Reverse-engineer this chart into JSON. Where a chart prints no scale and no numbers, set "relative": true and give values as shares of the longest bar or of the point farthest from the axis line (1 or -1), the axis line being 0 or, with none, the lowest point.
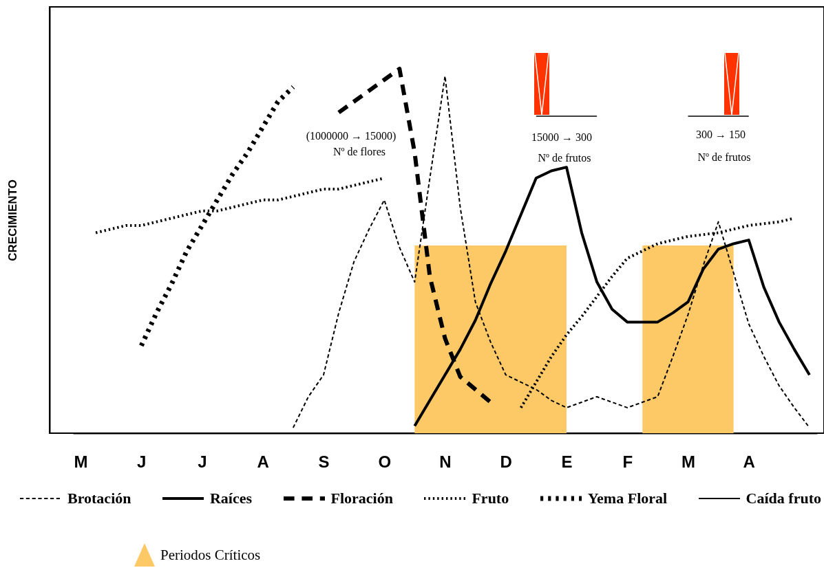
{
  "chart_data": {
    "type": "line",
    "relative": true,
    "ylabel": "CRECIMIENTO",
    "categories": [
      "M",
      null,
      null,
      null,
      "J",
      null,
      null,
      null,
      "J",
      null,
      null,
      null,
      "A",
      null,
      null,
      null,
      "S",
      null,
      null,
      null,
      "O",
      null,
      null,
      null,
      "N",
      null,
      null,
      null,
      "D",
      null,
      null,
      null,
      "E",
      null,
      null,
      null,
      "F",
      null,
      null,
      null,
      "M",
      null,
      null,
      null,
      "A",
      null,
      null,
      null,
      null
    ],
    "series": [
      {
        "name": "Periodos Críticos",
        "type": "area",
        "color": "#fdc967",
        "values": [
          null,
          null,
          null,
          null,
          null,
          null,
          null,
          null,
          null,
          null,
          null,
          null,
          null,
          null,
          null,
          null,
          null,
          null,
          null,
          null,
          null,
          null,
          0.515,
          0.515,
          0.515,
          0.515,
          0.515,
          0.515,
          0.515,
          0.515,
          0.515,
          0.515,
          0.515,
          null,
          null,
          null,
          null,
          0.515,
          0.515,
          0.515,
          0.515,
          0.515,
          0.515,
          0.515,
          null,
          null,
          null,
          null,
          null
        ]
      },
      {
        "name": "Brotación",
        "color": "#000000",
        "line_style": "dashed",
        "values": [
          null,
          null,
          null,
          null,
          null,
          null,
          null,
          null,
          null,
          null,
          null,
          null,
          null,
          null,
          0.015,
          0.1,
          0.16,
          0.33,
          0.47,
          0.56,
          0.64,
          0.51,
          0.415,
          0.7,
          0.98,
          0.62,
          0.36,
          0.25,
          0.16,
          0.14,
          0.12,
          0.09,
          0.07,
          0.085,
          0.1,
          0.085,
          0.07,
          0.085,
          0.1,
          0.21,
          0.325,
          0.46,
          0.58,
          0.44,
          0.3,
          0.21,
          0.13,
          0.07,
          0.015
        ]
      },
      {
        "name": "Raíces",
        "color": "#000000",
        "line_style": "solid",
        "values": [
          null,
          null,
          null,
          null,
          null,
          null,
          null,
          null,
          null,
          null,
          null,
          null,
          null,
          null,
          null,
          null,
          null,
          null,
          null,
          null,
          null,
          null,
          0.02,
          0.09,
          0.16,
          0.23,
          0.31,
          0.41,
          0.5,
          0.6,
          0.7,
          0.72,
          0.73,
          0.55,
          0.415,
          0.34,
          0.305,
          0.305,
          0.305,
          0.33,
          0.36,
          0.45,
          0.505,
          0.52,
          0.53,
          0.4,
          0.305,
          0.23,
          0.16
        ]
      },
      {
        "name": "Floración",
        "color": "#000000",
        "line_style": "dashed",
        "values": [
          null,
          null,
          null,
          null,
          null,
          null,
          null,
          null,
          null,
          null,
          null,
          null,
          null,
          null,
          null,
          null,
          null,
          0.88,
          0.91,
          0.94,
          0.97,
          1.0,
          0.77,
          0.43,
          0.26,
          0.155,
          0.12,
          0.085,
          null,
          null,
          null,
          null,
          null,
          null,
          null,
          null,
          null,
          null,
          null,
          null,
          null,
          null,
          null,
          null,
          null,
          null,
          null,
          null,
          null
        ]
      },
      {
        "name": "Fruto",
        "color": "#000000",
        "line_style": "dotted",
        "values": [
          null,
          0.55,
          0.56,
          0.57,
          0.57,
          0.58,
          0.59,
          0.6,
          0.61,
          0.61,
          0.62,
          0.63,
          0.64,
          0.64,
          0.65,
          0.66,
          0.67,
          0.67,
          0.68,
          0.69,
          0.7,
          null,
          null,
          null,
          null,
          null,
          null,
          null,
          null,
          0.07,
          0.14,
          0.21,
          0.27,
          0.32,
          0.375,
          0.43,
          0.48,
          0.5,
          0.52,
          0.53,
          0.54,
          0.545,
          0.55,
          0.56,
          0.57,
          0.575,
          0.58,
          0.59,
          null
        ]
      },
      {
        "name": "Yema Floral",
        "color": "#000000",
        "line_style": "dotted",
        "values": [
          null,
          null,
          null,
          null,
          0.24,
          0.33,
          0.41,
          0.5,
          0.57,
          0.64,
          0.71,
          0.77,
          0.84,
          0.91,
          0.95,
          null,
          null,
          null,
          null,
          null,
          null,
          null,
          null,
          null,
          null,
          null,
          null,
          null,
          null,
          null,
          null,
          null,
          null,
          null,
          null,
          null,
          null,
          null,
          null,
          null,
          null,
          null,
          null,
          null,
          null,
          null,
          null,
          null,
          null
        ]
      },
      {
        "name": "Caída fruto",
        "color": "#000000",
        "line_style": "solid",
        "values": [
          null,
          null,
          null,
          null,
          null,
          null,
          null,
          null,
          null,
          null,
          null,
          null,
          null,
          null,
          null,
          null,
          null,
          null,
          null,
          null,
          null,
          null,
          null,
          null,
          null,
          null,
          null,
          null,
          null,
          null,
          0.87,
          0.87,
          0.87,
          0.87,
          0.87,
          null,
          null,
          null,
          null,
          null,
          0.87,
          0.87,
          0.87,
          0.87,
          0.87,
          null,
          null,
          null,
          null
        ]
      }
    ],
    "annotations": [
      "(1000000 → 15000)",
      "Nº de flores",
      "15000 → 300",
      "Nº de frutos",
      "300 → 150",
      "Nº de frutos"
    ],
    "legend": "bottom",
    "grid": false
  }
}
